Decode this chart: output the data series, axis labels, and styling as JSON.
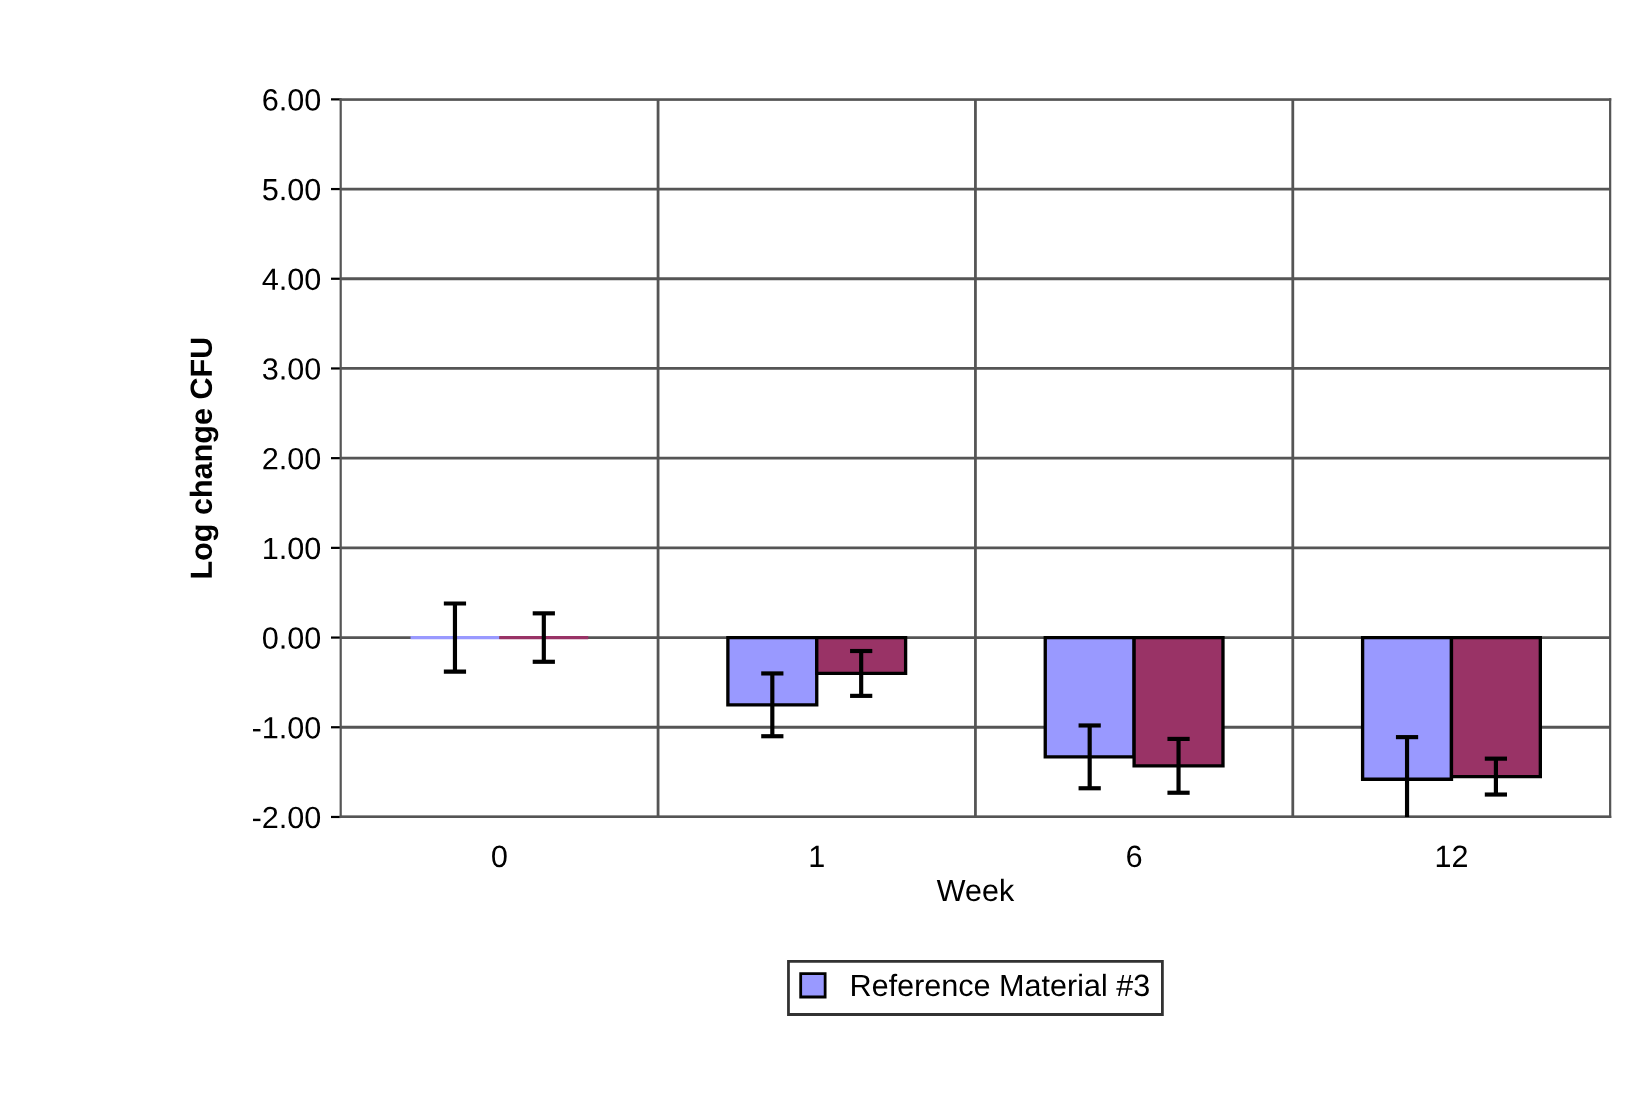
{
  "chart_data": {
    "type": "bar",
    "xlabel": "Week",
    "ylabel": "Log change CFU",
    "categories": [
      "0",
      "1",
      "6",
      "12"
    ],
    "series": [
      {
        "name": "Reference Material #3",
        "color": "#9999ff",
        "values": [
          0,
          -0.75,
          -1.33,
          -1.58
        ],
        "errors": [
          0.38,
          0.35,
          0.35,
          0.47
        ]
      },
      {
        "color": "#993366",
        "values": [
          0,
          -0.4,
          -1.43,
          -1.55
        ],
        "errors": [
          0.27,
          0.25,
          0.3,
          0.2
        ]
      }
    ],
    "ylim": [
      -2,
      6
    ],
    "yticks": [
      {
        "value": -2,
        "label": "-2.00"
      },
      {
        "value": -1,
        "label": "-1.00"
      },
      {
        "value": 0,
        "label": "0.00"
      },
      {
        "value": 1,
        "label": "1.00"
      },
      {
        "value": 2,
        "label": "2.00"
      },
      {
        "value": 3,
        "label": "3.00"
      },
      {
        "value": 4,
        "label": "4.00"
      },
      {
        "value": 5,
        "label": "5.00"
      },
      {
        "value": 6,
        "label": "6.00"
      }
    ],
    "grid": true,
    "legend": "bottom"
  }
}
